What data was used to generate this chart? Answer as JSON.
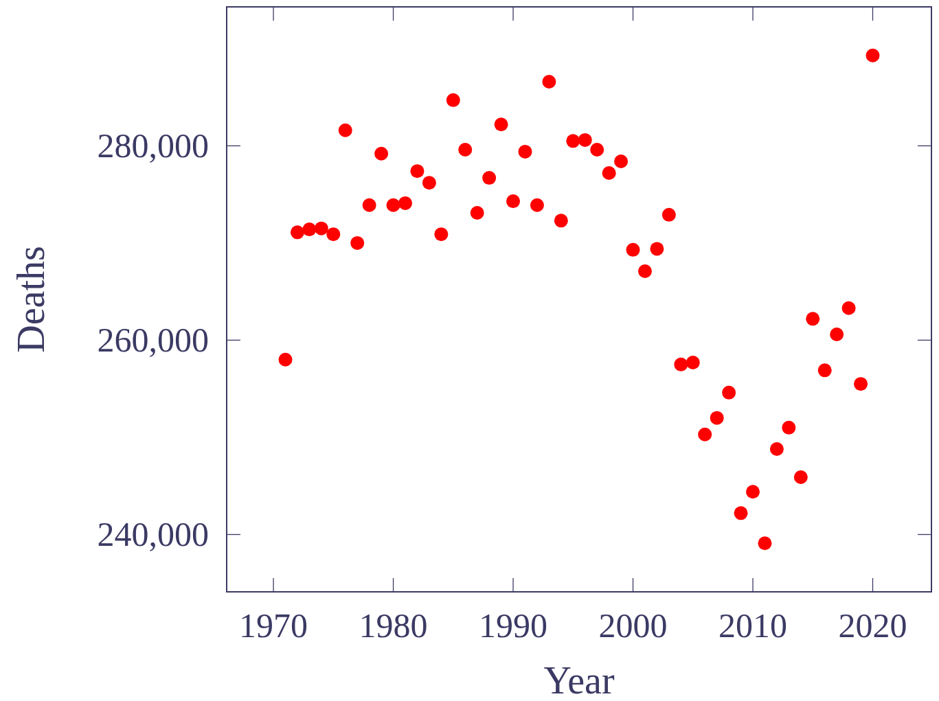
{
  "chart_data": {
    "type": "scatter",
    "xlabel": "Year",
    "ylabel": "Deaths",
    "marker": "circle",
    "grid": false,
    "x": [
      1971,
      1972,
      1973,
      1974,
      1975,
      1976,
      1977,
      1978,
      1979,
      1980,
      1981,
      1982,
      1983,
      1984,
      1985,
      1986,
      1987,
      1988,
      1989,
      1990,
      1991,
      1992,
      1993,
      1994,
      1995,
      1996,
      1997,
      1998,
      1999,
      2000,
      2001,
      2002,
      2003,
      2004,
      2005,
      2006,
      2007,
      2008,
      2009,
      2010,
      2011,
      2012,
      2013,
      2014,
      2015,
      2016,
      2017,
      2018,
      2019,
      2020
    ],
    "series": [
      {
        "color": "#ff0000",
        "values": [
          258000,
          271100,
          271400,
          271500,
          270900,
          281600,
          270000,
          273900,
          279200,
          273900,
          274100,
          277400,
          276200,
          270900,
          284700,
          279600,
          273100,
          276700,
          282200,
          274300,
          279400,
          273900,
          286600,
          272300,
          280500,
          280600,
          279600,
          277200,
          278400,
          269300,
          267100,
          269400,
          272900,
          257500,
          257700,
          250300,
          252000,
          254600,
          242200,
          244400,
          239100,
          248800,
          251000,
          245900,
          262200,
          256900,
          260600,
          263300,
          255500,
          289300
        ]
      }
    ],
    "xlim": [
      1966.1,
      2024.9
    ],
    "ylim": [
      234100,
      294300
    ],
    "xticks": [
      1970,
      1980,
      1990,
      2000,
      2010,
      2020
    ],
    "yticks": [
      {
        "value": 240000,
        "label": "240,000"
      },
      {
        "value": 260000,
        "label": "260,000"
      },
      {
        "value": 280000,
        "label": "280,000"
      }
    ]
  }
}
